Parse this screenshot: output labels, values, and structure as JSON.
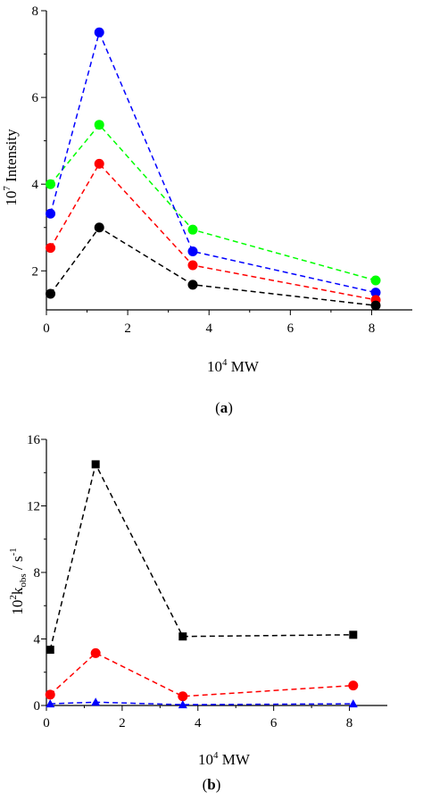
{
  "chart_data": [
    {
      "type": "line",
      "panel_label": "(a)",
      "xlabel": "10⁴ MW",
      "ylabel": "10⁷ Intensity",
      "xlim": [
        0,
        9
      ],
      "ylim": [
        1.1,
        8
      ],
      "xticks": [
        0,
        2,
        4,
        6,
        8
      ],
      "yticks": [
        2,
        4,
        6,
        8
      ],
      "grid": false,
      "line_style": "dashed",
      "x": [
        0.1,
        1.3,
        3.6,
        8.1
      ],
      "series": [
        {
          "color": "#00ff00",
          "marker": "circle",
          "values": [
            4.0,
            5.37,
            2.95,
            1.78
          ]
        },
        {
          "color": "#0000ff",
          "marker": "circle",
          "values": [
            3.32,
            7.5,
            2.45,
            1.5
          ]
        },
        {
          "color": "#ff0000",
          "marker": "circle",
          "values": [
            2.53,
            4.47,
            2.13,
            1.33
          ]
        },
        {
          "color": "#000000",
          "marker": "circle",
          "values": [
            1.47,
            3.0,
            1.68,
            1.2
          ]
        }
      ]
    },
    {
      "type": "line",
      "panel_label": "(b)",
      "xlabel": "10⁴ MW",
      "ylabel": "10²kobs / s⁻¹",
      "ylabel_parts": {
        "base": "10",
        "exp": "2",
        "k": "k",
        "sub": "obs",
        "unit": " / s",
        "unit_exp": "-1"
      },
      "xlim": [
        0,
        9
      ],
      "ylim": [
        0,
        16
      ],
      "xticks": [
        0,
        2,
        4,
        6,
        8
      ],
      "yticks": [
        0,
        4,
        8,
        12,
        16
      ],
      "grid": false,
      "line_style": "dashed",
      "x": [
        0.1,
        1.3,
        3.6,
        8.1
      ],
      "series": [
        {
          "color": "#000000",
          "marker": "square",
          "values": [
            3.35,
            14.5,
            4.15,
            4.25
          ]
        },
        {
          "color": "#ff0000",
          "marker": "circle",
          "values": [
            0.65,
            3.15,
            0.55,
            1.2
          ]
        },
        {
          "color": "#0000ff",
          "marker": "triangle",
          "values": [
            0.1,
            0.2,
            0.05,
            0.1
          ]
        }
      ]
    }
  ]
}
